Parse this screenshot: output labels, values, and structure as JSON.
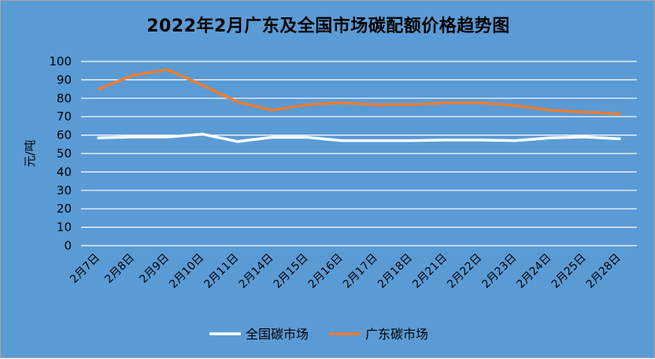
{
  "chart_data": {
    "type": "line",
    "title": "2022年2月广东及全国市场碳配额价格趋势图",
    "xlabel": "",
    "ylabel": "元/吨",
    "ylim": [
      0,
      100
    ],
    "yticks": [
      0,
      10,
      20,
      30,
      40,
      50,
      60,
      70,
      80,
      90,
      100
    ],
    "grid": true,
    "legend_position": "bottom",
    "categories": [
      "2月7日",
      "2月8日",
      "2月9日",
      "2月10日",
      "2月11日",
      "2月14日",
      "2月15日",
      "2月16日",
      "2月17日",
      "2月18日",
      "2月21日",
      "2月22日",
      "2月23日",
      "2月24日",
      "2月25日",
      "2月28日"
    ],
    "series": [
      {
        "name": "全国碳市场",
        "color": "#ffffff",
        "values": [
          58.5,
          59,
          59,
          60.5,
          56.5,
          58.8,
          58.8,
          57,
          57,
          57,
          57.3,
          57.3,
          57,
          58.5,
          59,
          58
        ]
      },
      {
        "name": "广东碳市场",
        "color": "#ed7d31",
        "values": [
          85,
          92.5,
          95.5,
          87,
          78,
          73.5,
          76.5,
          77.5,
          76.5,
          76.5,
          77.5,
          77.5,
          76,
          73.5,
          72.5,
          71.5
        ]
      }
    ]
  },
  "colors": {
    "background": "#5b9bd5",
    "gridline": "#ffffff"
  }
}
